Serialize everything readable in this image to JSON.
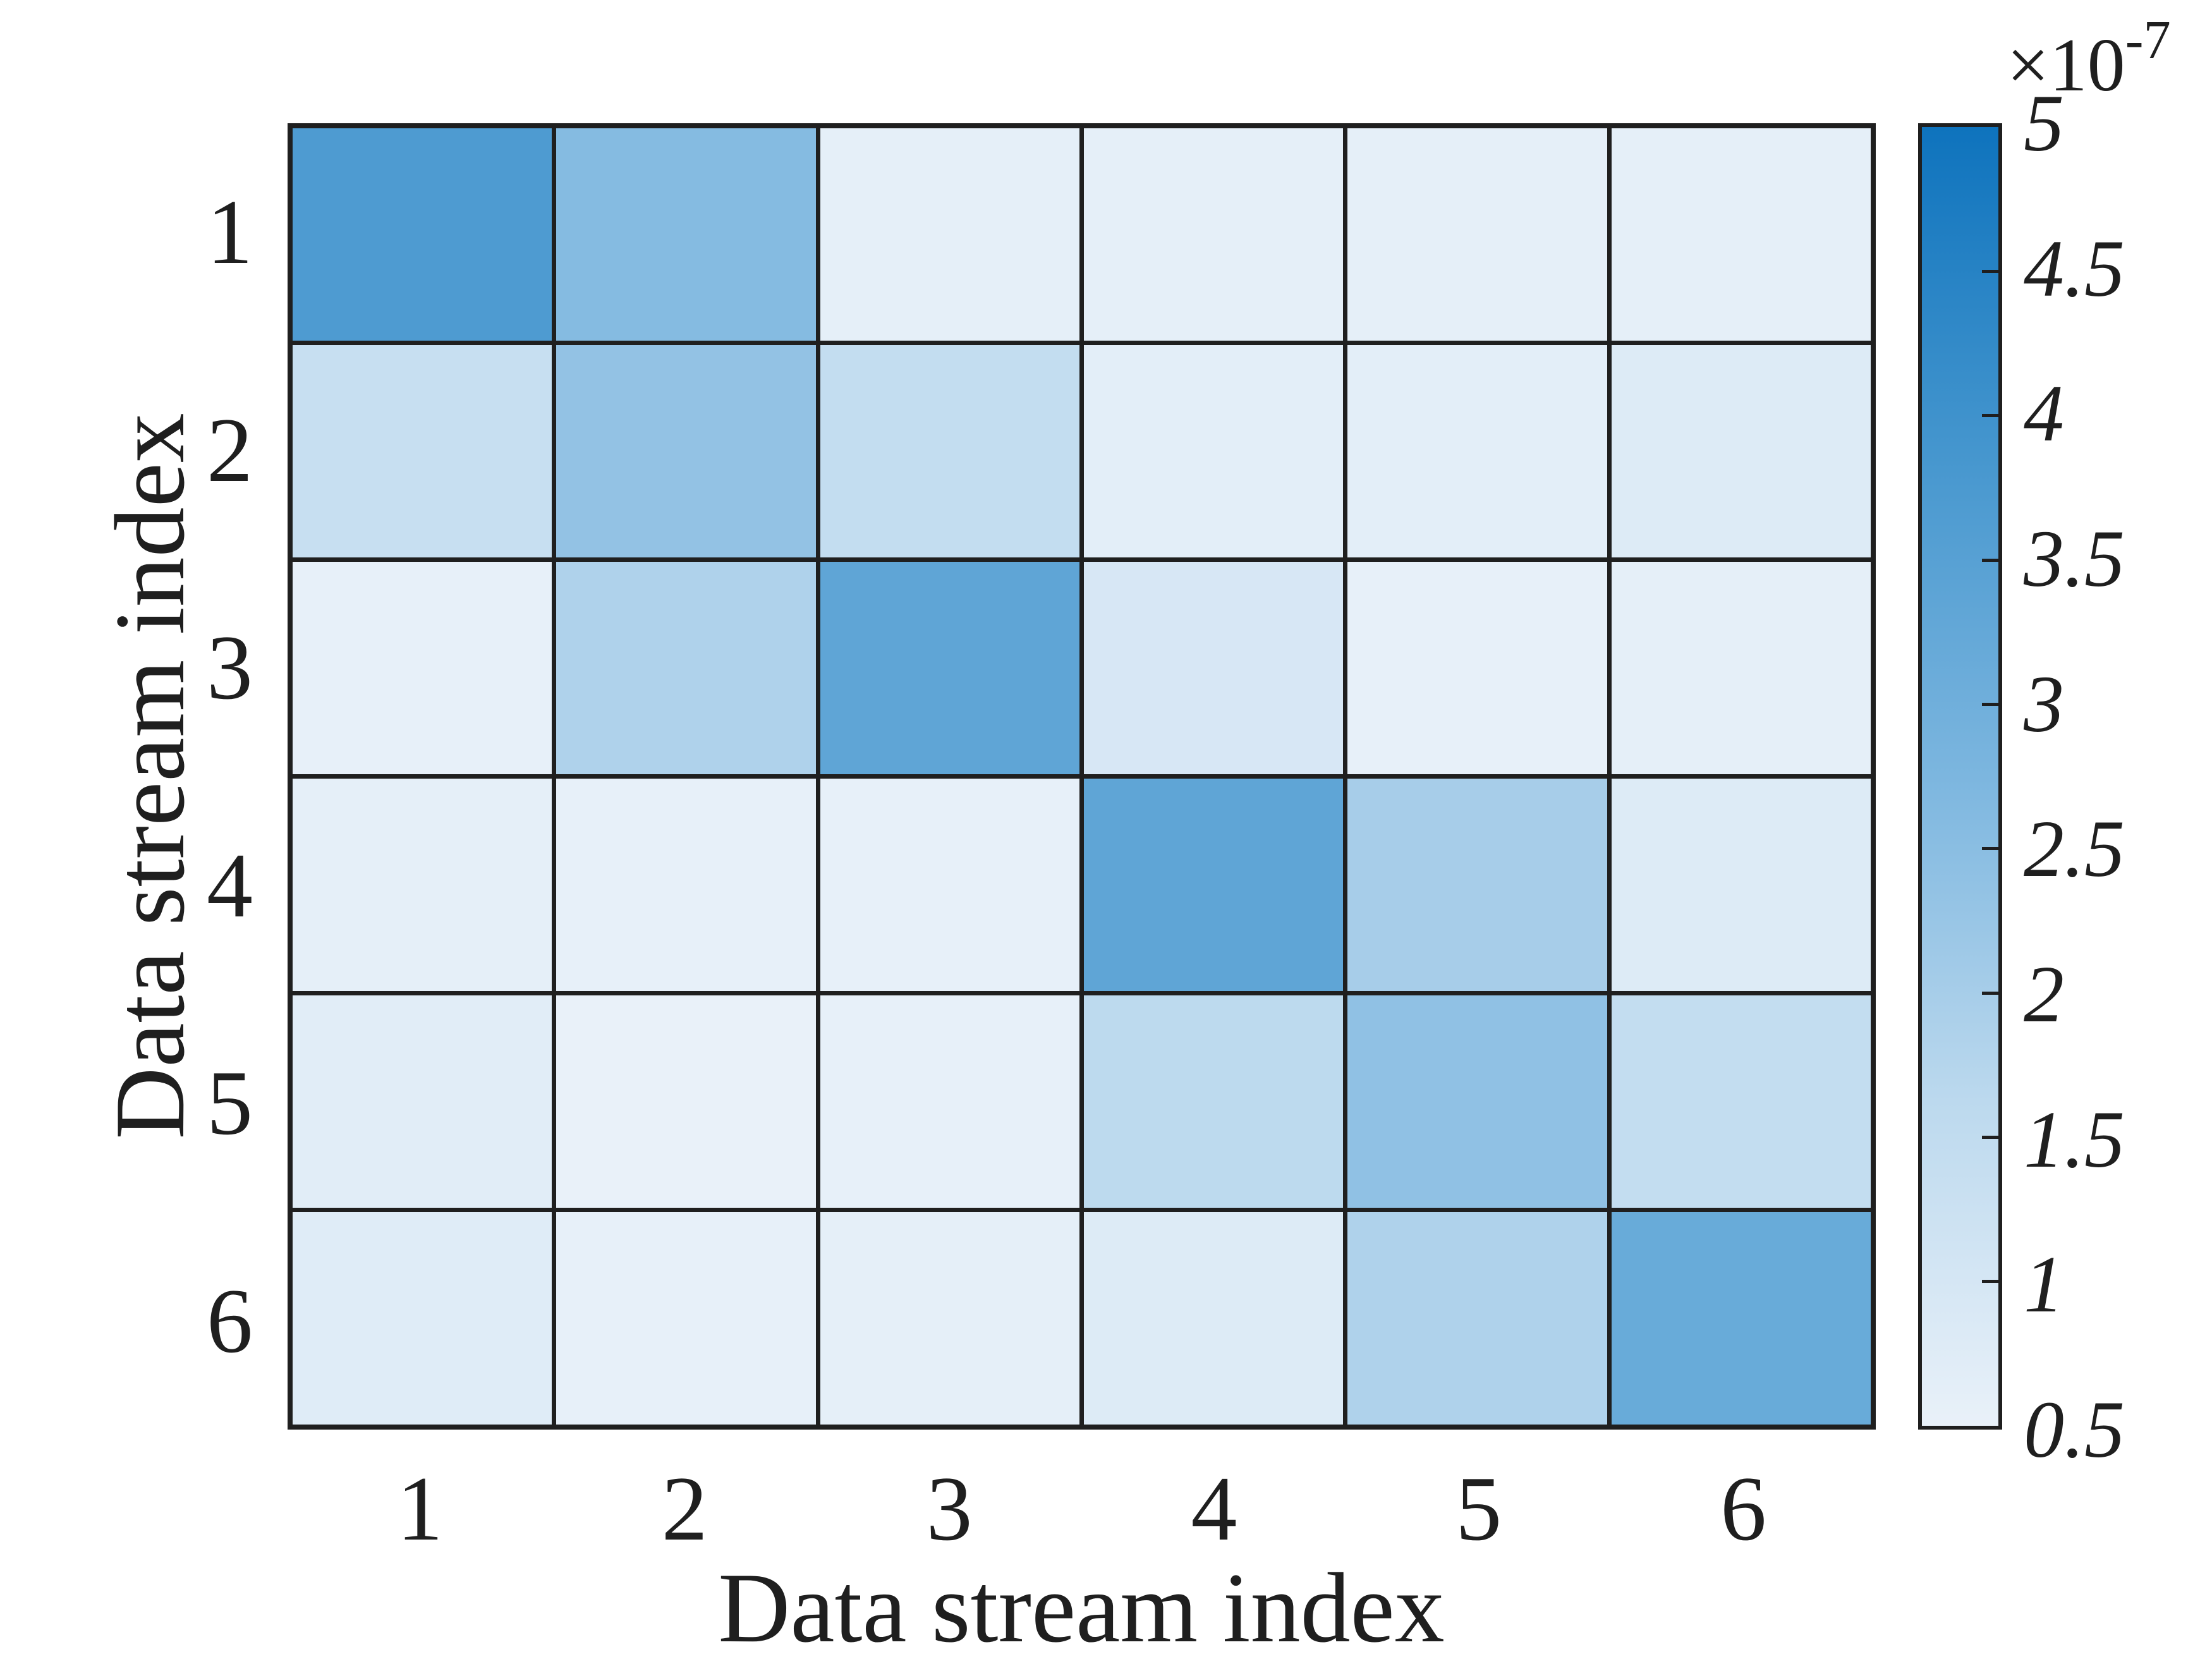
{
  "figure": {
    "background": "#ffffff",
    "text_color": "#1f1f1f",
    "grid_line_color": "#1f1f1f",
    "xlabel": "Data stream index",
    "ylabel": "Data stream index"
  },
  "chart_data": {
    "type": "heatmap",
    "title": "",
    "xlabel": "Data stream index",
    "ylabel": "Data stream index",
    "x_tick_labels": [
      "1",
      "2",
      "3",
      "4",
      "5",
      "6"
    ],
    "y_tick_labels": [
      "1",
      "2",
      "3",
      "4",
      "5",
      "6"
    ],
    "value_scale_label": "×10",
    "value_scale_exponent": "-7",
    "value_scale_factor": 1e-07,
    "value_range": [
      0.5,
      5
    ],
    "matrix_units": "values are multiples of 1e-7",
    "matrix": [
      [
        3.7,
        2.6,
        0.6,
        0.6,
        0.6,
        0.6
      ],
      [
        1.35,
        2.35,
        1.45,
        0.65,
        0.65,
        0.8
      ],
      [
        0.55,
        1.85,
        3.35,
        0.95,
        0.55,
        0.6
      ],
      [
        0.6,
        0.55,
        0.55,
        3.35,
        2.0,
        0.8
      ],
      [
        0.7,
        0.5,
        0.55,
        1.6,
        2.4,
        1.45
      ],
      [
        0.75,
        0.55,
        0.6,
        0.8,
        1.85,
        3.15
      ]
    ],
    "colorbar": {
      "orientation": "vertical",
      "tick_values": [
        5,
        4.5,
        4,
        3.5,
        3,
        2.5,
        2,
        1.5,
        1,
        0.5
      ],
      "tick_labels": [
        "5",
        "4.5",
        "4",
        "3.5",
        "3",
        "2.5",
        "2",
        "1.5",
        "1",
        "0.5"
      ],
      "inner_tick_values": [
        4.5,
        4,
        3.5,
        3,
        2.5,
        2,
        1.5,
        1
      ]
    },
    "colormap_stops": [
      {
        "value": 0.5,
        "color": "#e9f1f9"
      },
      {
        "value": 1.625,
        "color": "#bcd9ee"
      },
      {
        "value": 2.75,
        "color": "#7cb6df"
      },
      {
        "value": 3.875,
        "color": "#4596ce"
      },
      {
        "value": 5.0,
        "color": "#0e73bd"
      }
    ],
    "legend": null,
    "grid": "on (cell borders)"
  }
}
